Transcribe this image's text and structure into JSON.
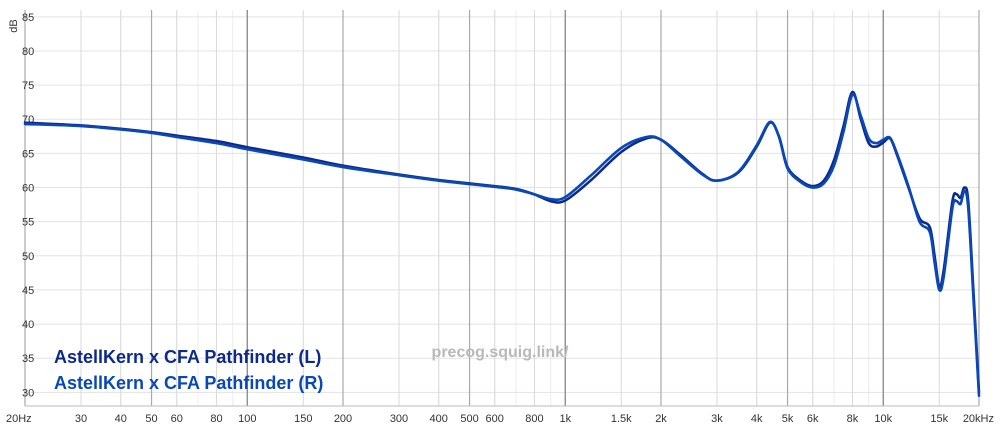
{
  "chart_data": {
    "type": "line",
    "xscale": "log",
    "xlim": [
      20,
      20000
    ],
    "ylim": [
      28,
      86
    ],
    "ylabel": "dB",
    "yticks": [
      85,
      80,
      75,
      70,
      65,
      60,
      55,
      50,
      45,
      40,
      35,
      30
    ],
    "xticks": [
      {
        "v": 20,
        "label": "20Hz"
      },
      {
        "v": 30,
        "label": "30"
      },
      {
        "v": 40,
        "label": "40"
      },
      {
        "v": 50,
        "label": "50"
      },
      {
        "v": 60,
        "label": "60"
      },
      {
        "v": 80,
        "label": "80"
      },
      {
        "v": 100,
        "label": "100"
      },
      {
        "v": 150,
        "label": "150"
      },
      {
        "v": 200,
        "label": "200"
      },
      {
        "v": 300,
        "label": "300"
      },
      {
        "v": 400,
        "label": "400"
      },
      {
        "v": 500,
        "label": "500"
      },
      {
        "v": 600,
        "label": "600"
      },
      {
        "v": 800,
        "label": "800"
      },
      {
        "v": 1000,
        "label": "1k"
      },
      {
        "v": 1500,
        "label": "1.5k"
      },
      {
        "v": 2000,
        "label": "2k"
      },
      {
        "v": 3000,
        "label": "3k"
      },
      {
        "v": 4000,
        "label": "4k"
      },
      {
        "v": 5000,
        "label": "5k"
      },
      {
        "v": 6000,
        "label": "6k"
      },
      {
        "v": 8000,
        "label": "8k"
      },
      {
        "v": 10000,
        "label": "10k"
      },
      {
        "v": 15000,
        "label": "15k"
      },
      {
        "v": 20000,
        "label": "20kHz"
      }
    ],
    "watermark": "precog.squig.link/",
    "grid": true,
    "legend_position": "bottom-left",
    "series": [
      {
        "name": "AstellKern x CFA Pathfinder (L)",
        "color": "#0d2a8a",
        "points": [
          [
            20,
            69.5
          ],
          [
            30,
            69.1
          ],
          [
            40,
            68.6
          ],
          [
            50,
            68.1
          ],
          [
            60,
            67.6
          ],
          [
            80,
            66.8
          ],
          [
            100,
            65.9
          ],
          [
            150,
            64.4
          ],
          [
            200,
            63.2
          ],
          [
            300,
            61.9
          ],
          [
            400,
            61.1
          ],
          [
            500,
            60.6
          ],
          [
            600,
            60.2
          ],
          [
            700,
            59.8
          ],
          [
            800,
            59.0
          ],
          [
            900,
            58.0
          ],
          [
            1000,
            58.1
          ],
          [
            1200,
            61.0
          ],
          [
            1500,
            65.2
          ],
          [
            1800,
            67.2
          ],
          [
            2000,
            67.0
          ],
          [
            2300,
            64.8
          ],
          [
            2700,
            62.0
          ],
          [
            3000,
            61.0
          ],
          [
            3500,
            62.2
          ],
          [
            4000,
            66.0
          ],
          [
            4400,
            69.5
          ],
          [
            4700,
            67.5
          ],
          [
            5000,
            63.0
          ],
          [
            5500,
            61.0
          ],
          [
            6000,
            60.2
          ],
          [
            6500,
            61.0
          ],
          [
            7000,
            64.0
          ],
          [
            7500,
            69.0
          ],
          [
            8000,
            74.0
          ],
          [
            8500,
            70.0
          ],
          [
            9000,
            66.5
          ],
          [
            9500,
            66.0
          ],
          [
            10000,
            66.6
          ],
          [
            10500,
            67.2
          ],
          [
            11000,
            65.0
          ],
          [
            12000,
            60.0
          ],
          [
            13000,
            55.5
          ],
          [
            14000,
            54.2
          ],
          [
            14500,
            50.0
          ],
          [
            15000,
            45.5
          ],
          [
            15500,
            48.0
          ],
          [
            16500,
            58.0
          ],
          [
            17000,
            59.0
          ],
          [
            17500,
            58.5
          ],
          [
            18000,
            60.0
          ],
          [
            18500,
            58.0
          ],
          [
            19200,
            45.0
          ],
          [
            20000,
            30.0
          ]
        ]
      },
      {
        "name": "AstellKern x CFA Pathfinder (R)",
        "color": "#0a48b8",
        "points": [
          [
            20,
            69.3
          ],
          [
            30,
            69.0
          ],
          [
            40,
            68.5
          ],
          [
            50,
            68.0
          ],
          [
            60,
            67.4
          ],
          [
            80,
            66.5
          ],
          [
            100,
            65.6
          ],
          [
            150,
            64.1
          ],
          [
            200,
            63.0
          ],
          [
            300,
            61.8
          ],
          [
            400,
            61.0
          ],
          [
            500,
            60.5
          ],
          [
            600,
            60.1
          ],
          [
            700,
            59.7
          ],
          [
            800,
            59.0
          ],
          [
            900,
            58.3
          ],
          [
            1000,
            58.6
          ],
          [
            1200,
            61.7
          ],
          [
            1500,
            65.8
          ],
          [
            1800,
            67.4
          ],
          [
            2000,
            67.0
          ],
          [
            2300,
            64.6
          ],
          [
            2700,
            61.9
          ],
          [
            3000,
            61.0
          ],
          [
            3500,
            62.3
          ],
          [
            4000,
            66.2
          ],
          [
            4400,
            69.6
          ],
          [
            4700,
            67.4
          ],
          [
            5000,
            62.8
          ],
          [
            5500,
            60.8
          ],
          [
            6000,
            60.0
          ],
          [
            6500,
            60.6
          ],
          [
            7000,
            63.2
          ],
          [
            7500,
            68.2
          ],
          [
            8000,
            73.6
          ],
          [
            8500,
            70.5
          ],
          [
            9000,
            67.2
          ],
          [
            9500,
            66.5
          ],
          [
            10000,
            67.0
          ],
          [
            10500,
            67.3
          ],
          [
            11000,
            65.2
          ],
          [
            12000,
            60.2
          ],
          [
            13000,
            55.0
          ],
          [
            14000,
            53.5
          ],
          [
            14500,
            49.0
          ],
          [
            15000,
            45.0
          ],
          [
            15500,
            47.0
          ],
          [
            16500,
            57.0
          ],
          [
            17000,
            58.0
          ],
          [
            17500,
            57.6
          ],
          [
            18000,
            59.5
          ],
          [
            18500,
            57.0
          ],
          [
            19200,
            44.0
          ],
          [
            20000,
            29.5
          ]
        ]
      }
    ]
  }
}
